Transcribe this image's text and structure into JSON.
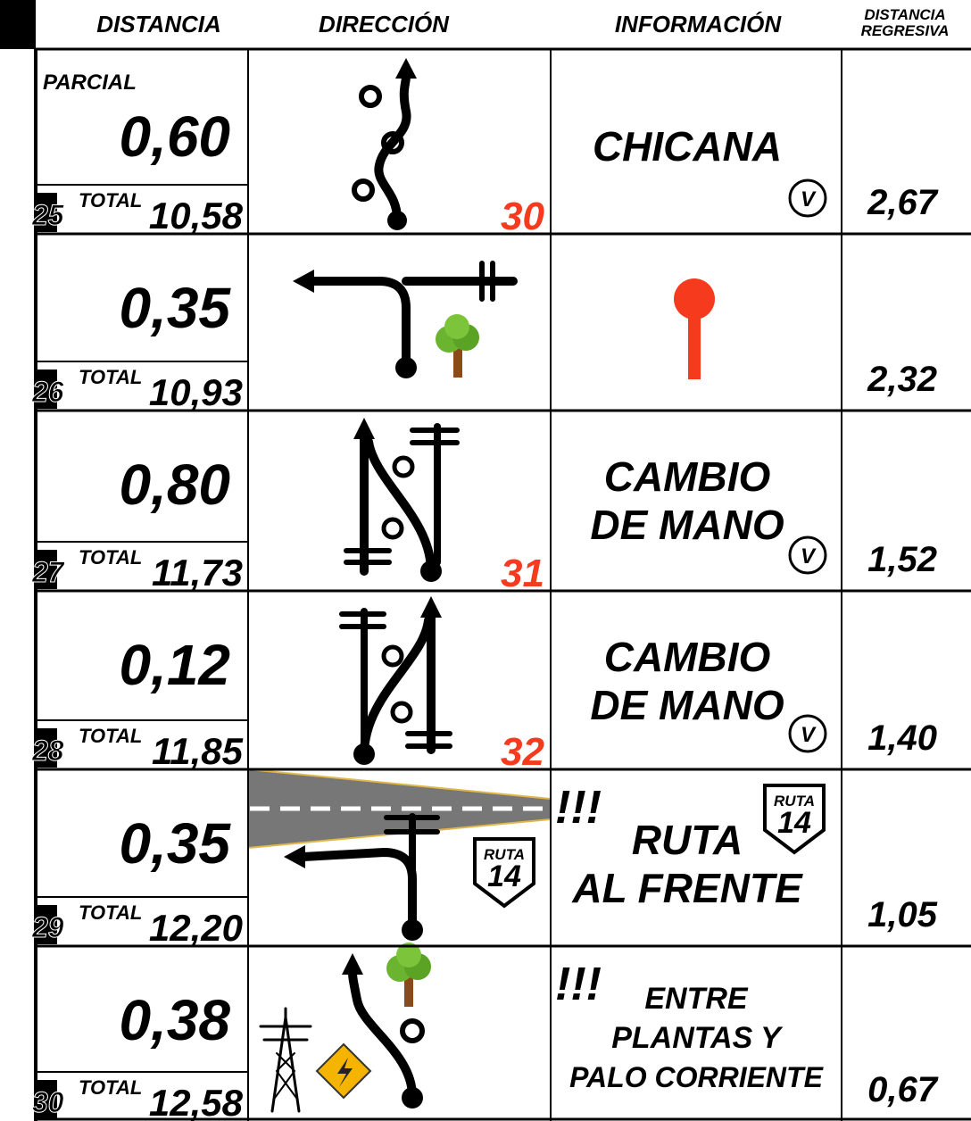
{
  "header": {
    "columns": [
      "DISTANCIA",
      "DIRECCIÓN",
      "INFORMACIÓN"
    ],
    "regressive": [
      "DISTANCIA",
      "REGRESIVA"
    ]
  },
  "labels": {
    "partial": "PARCIAL",
    "total": "TOTAL"
  },
  "rows": [
    {
      "number": "25",
      "partial": "0,60",
      "total": "10,58",
      "info": [
        "CHICANA"
      ],
      "waypoint": "30",
      "speed_icon": "V",
      "remaining": "2,67"
    },
    {
      "number": "26",
      "partial": "0,35",
      "total": "10,93",
      "remaining": "2,32"
    },
    {
      "number": "27",
      "partial": "0,80",
      "total": "11,73",
      "info": [
        "CAMBIO",
        "DE MANO"
      ],
      "waypoint": "31",
      "speed_icon": "V",
      "remaining": "1,52"
    },
    {
      "number": "28",
      "partial": "0,12",
      "total": "11,85",
      "info": [
        "CAMBIO",
        "DE MANO"
      ],
      "waypoint": "32",
      "speed_icon": "V",
      "remaining": "1,40"
    },
    {
      "number": "29",
      "partial": "0,35",
      "total": "12,20",
      "alert": "!!!",
      "info": [
        "RUTA",
        "AL FRENTE"
      ],
      "route_sign": {
        "top": "RUTA",
        "number": "14"
      },
      "remaining": "1,05"
    },
    {
      "number": "30",
      "partial": "0,38",
      "total": "12,58",
      "alert": "!!!",
      "info": [
        "ENTRE",
        "PLANTAS Y",
        "PALO CORRIENTE"
      ],
      "remaining": "0,67"
    }
  ]
}
